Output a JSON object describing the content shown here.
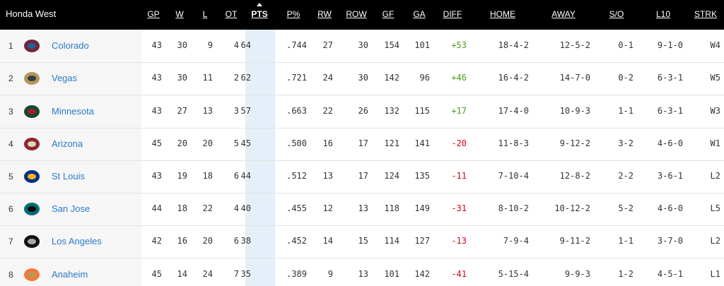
{
  "header": {
    "title": "Honda West",
    "columns": [
      "GP",
      "W",
      "L",
      "OT",
      "PTS",
      "P%",
      "RW",
      "ROW",
      "GF",
      "GA",
      "DIFF",
      "HOME",
      "AWAY",
      "S/O",
      "L10",
      "STRK"
    ]
  },
  "rows": [
    {
      "rank": "1",
      "team": "Colorado",
      "stats": [
        "43",
        "30",
        "9",
        "4",
        "64",
        ".744",
        "27",
        "30",
        "154",
        "101",
        "+53",
        "18-4-2",
        "12-5-2",
        "0-1",
        "9-1-0",
        "W4"
      ]
    },
    {
      "rank": "2",
      "team": "Vegas",
      "stats": [
        "43",
        "30",
        "11",
        "2",
        "62",
        ".721",
        "24",
        "30",
        "142",
        "96",
        "+46",
        "16-4-2",
        "14-7-0",
        "0-2",
        "6-3-1",
        "W5"
      ]
    },
    {
      "rank": "3",
      "team": "Minnesota",
      "stats": [
        "43",
        "27",
        "13",
        "3",
        "57",
        ".663",
        "22",
        "26",
        "132",
        "115",
        "+17",
        "17-4-0",
        "10-9-3",
        "1-1",
        "6-3-1",
        "W3"
      ]
    },
    {
      "rank": "4",
      "team": "Arizona",
      "stats": [
        "45",
        "20",
        "20",
        "5",
        "45",
        ".500",
        "16",
        "17",
        "121",
        "141",
        "-20",
        "11-8-3",
        "9-12-2",
        "3-2",
        "4-6-0",
        "W1"
      ]
    },
    {
      "rank": "5",
      "team": "St Louis",
      "stats": [
        "43",
        "19",
        "18",
        "6",
        "44",
        ".512",
        "13",
        "17",
        "124",
        "135",
        "-11",
        "7-10-4",
        "12-8-2",
        "2-2",
        "3-6-1",
        "L2"
      ]
    },
    {
      "rank": "6",
      "team": "San Jose",
      "stats": [
        "44",
        "18",
        "22",
        "4",
        "40",
        ".455",
        "12",
        "13",
        "118",
        "149",
        "-31",
        "8-10-2",
        "10-12-2",
        "5-2",
        "4-6-0",
        "L5"
      ]
    },
    {
      "rank": "7",
      "team": "Los Angeles",
      "stats": [
        "42",
        "16",
        "20",
        "6",
        "38",
        ".452",
        "14",
        "15",
        "114",
        "127",
        "-13",
        "7-9-4",
        "9-11-2",
        "1-1",
        "3-7-0",
        "L2"
      ]
    },
    {
      "rank": "8",
      "team": "Anaheim",
      "stats": [
        "45",
        "14",
        "24",
        "7",
        "35",
        ".389",
        "9",
        "13",
        "101",
        "142",
        "-41",
        "5-15-4",
        "9-9-3",
        "1-2",
        "4-5-1",
        "L1"
      ]
    }
  ]
}
